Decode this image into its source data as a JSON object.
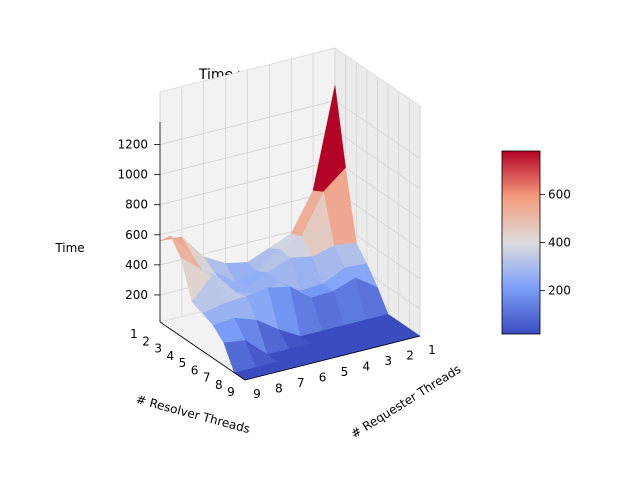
{
  "chart_data": {
    "type": "surface3d",
    "title": "Time vs. Thread Count",
    "xlabel": "# Resolver Threads",
    "ylabel": "# Requester Threads",
    "zlabel": "Time",
    "x": [
      1,
      2,
      3,
      4,
      5,
      6,
      7,
      8,
      9
    ],
    "y": [
      1,
      2,
      3,
      4,
      5,
      6,
      7,
      8,
      9
    ],
    "z_ticks": [
      200,
      400,
      600,
      800,
      1000,
      1200
    ],
    "zlim": [
      20,
      1350
    ],
    "colormap": "coolwarm",
    "colorbar": {
      "ticks": [
        200,
        400,
        600
      ],
      "range": [
        20,
        780
      ]
    },
    "grid": true,
    "z": [
      [
        1300,
        640,
        390,
        330,
        270,
        300,
        380,
        550,
        560
      ],
      [
        800,
        680,
        420,
        370,
        260,
        220,
        330,
        480,
        640
      ],
      [
        350,
        370,
        330,
        360,
        300,
        230,
        280,
        420,
        540
      ],
      [
        260,
        270,
        200,
        190,
        280,
        240,
        290,
        450,
        300
      ],
      [
        150,
        250,
        200,
        190,
        300,
        330,
        310,
        300,
        270
      ],
      [
        20,
        20,
        20,
        20,
        20,
        100,
        200,
        250,
        240
      ],
      [
        20,
        20,
        20,
        20,
        20,
        20,
        20,
        150,
        170
      ],
      [
        20,
        20,
        20,
        20,
        20,
        20,
        20,
        20,
        20
      ],
      [
        20,
        20,
        20,
        20,
        20,
        20,
        20,
        20,
        20
      ]
    ]
  }
}
